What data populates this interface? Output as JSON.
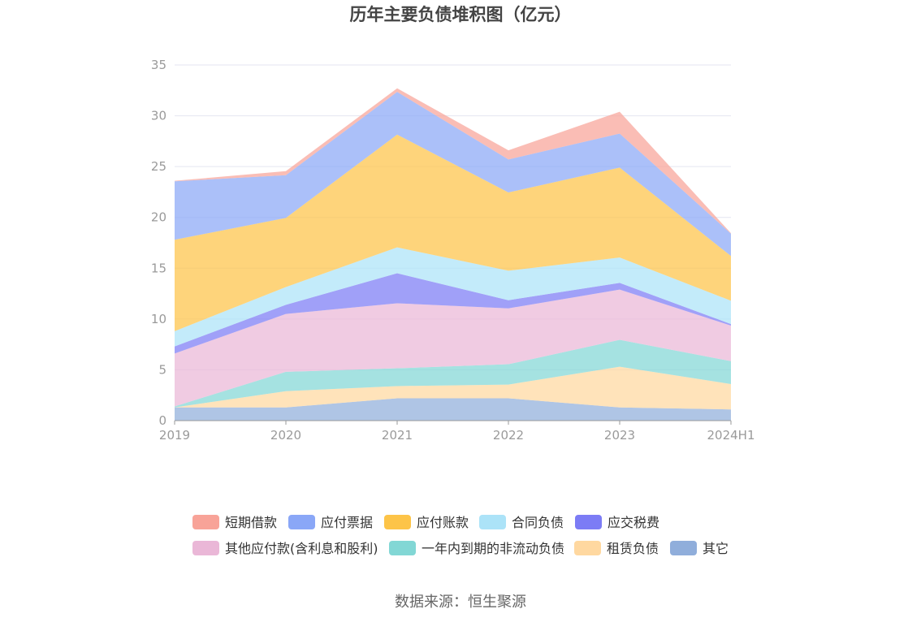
{
  "chart_data": {
    "type": "area",
    "stacked": true,
    "title": "历年主要负债堆积图（亿元）",
    "categories": [
      "2019",
      "2020",
      "2021",
      "2022",
      "2023",
      "2024H1"
    ],
    "ylim": [
      0,
      35
    ],
    "yticks": [
      0,
      5,
      10,
      15,
      20,
      25,
      30,
      35
    ],
    "grid": true,
    "legend_position": "bottom",
    "series": [
      {
        "name": "短期借款",
        "color": "#f8a398",
        "values": [
          0.05,
          0.4,
          0.35,
          0.9,
          2.15,
          0.05
        ]
      },
      {
        "name": "应付票据",
        "color": "#8aa7f7",
        "values": [
          5.75,
          4.2,
          4.2,
          3.25,
          3.35,
          2.2
        ]
      },
      {
        "name": "应付账款",
        "color": "#fdc448",
        "values": [
          9.0,
          6.8,
          11.1,
          7.7,
          8.85,
          4.4
        ]
      },
      {
        "name": "合同负债",
        "color": "#ace3f8",
        "values": [
          1.5,
          1.75,
          2.55,
          2.9,
          2.5,
          2.3
        ]
      },
      {
        "name": "应交税费",
        "color": "#7c7cf5",
        "values": [
          0.7,
          0.9,
          2.95,
          0.8,
          0.65,
          0.15
        ]
      },
      {
        "name": "其他应付款(含利息和股利)",
        "color": "#eab7d7",
        "values": [
          5.2,
          5.7,
          6.4,
          5.5,
          4.95,
          3.5
        ]
      },
      {
        "name": "一年内到期的非流动负债",
        "color": "#82d7d5",
        "values": [
          0.1,
          1.9,
          1.75,
          2.0,
          2.65,
          2.25
        ]
      },
      {
        "name": "租赁负债",
        "color": "#ffd8a0",
        "values": [
          0.0,
          1.6,
          1.2,
          1.35,
          4.0,
          2.5
        ]
      },
      {
        "name": "其它",
        "color": "#90aedb",
        "values": [
          1.3,
          1.3,
          2.2,
          2.2,
          1.3,
          1.1
        ]
      }
    ]
  },
  "source": "数据来源：恒生聚源"
}
